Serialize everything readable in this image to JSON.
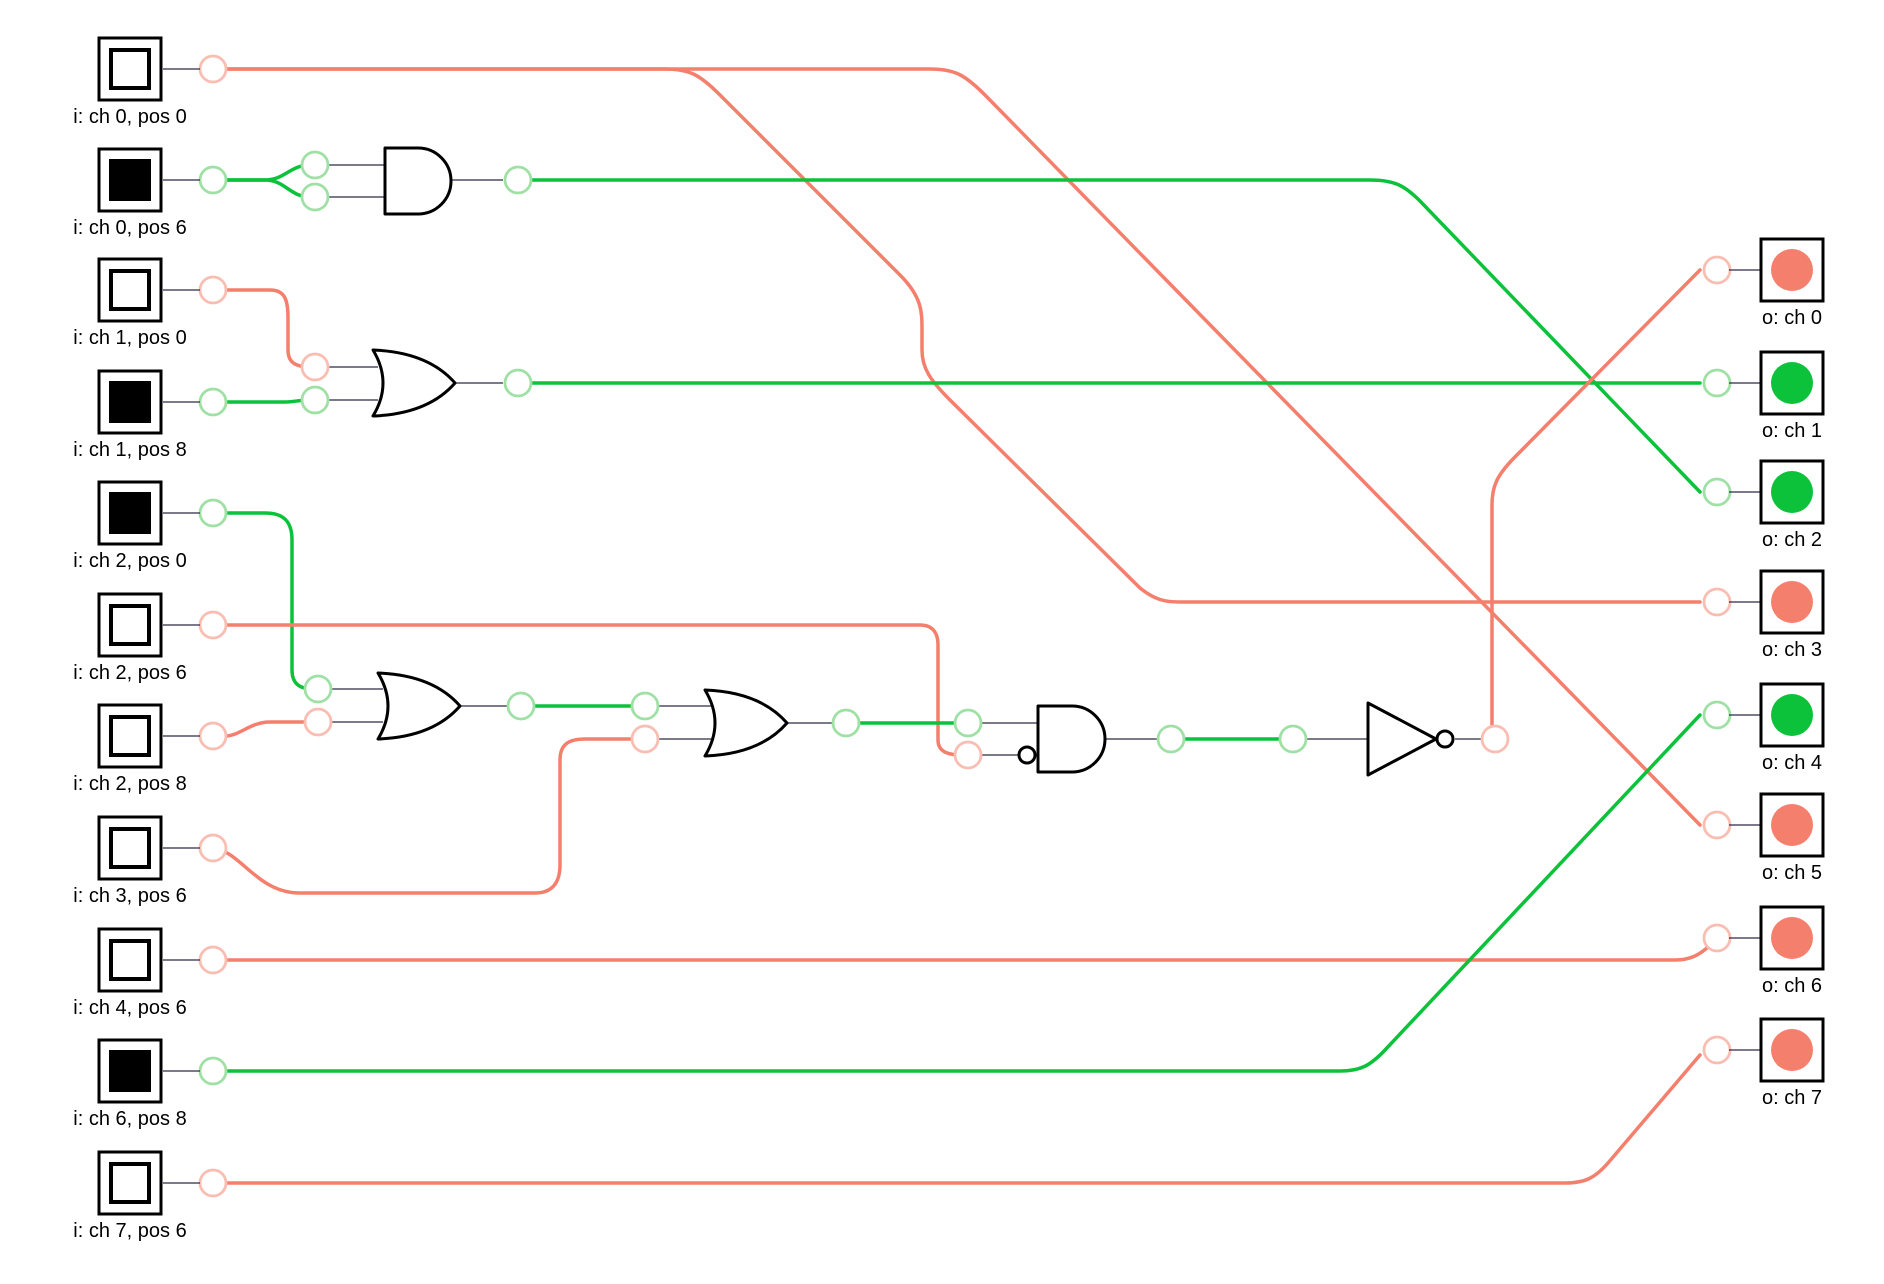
{
  "colors": {
    "on": "#0cc23a",
    "off": "#f47f6c",
    "port_on": "#9fe0a5",
    "port_off": "#f9bdb2",
    "outline": "#000000"
  },
  "inputs": [
    {
      "label": "i: ch 0, pos 0",
      "state": "off"
    },
    {
      "label": "i: ch 0, pos 6",
      "state": "on"
    },
    {
      "label": "i: ch 1, pos 0",
      "state": "off"
    },
    {
      "label": "i: ch 1, pos 8",
      "state": "on"
    },
    {
      "label": "i: ch 2, pos 0",
      "state": "on"
    },
    {
      "label": "i: ch 2, pos 6",
      "state": "off"
    },
    {
      "label": "i: ch 2, pos 8",
      "state": "off"
    },
    {
      "label": "i: ch 3, pos 6",
      "state": "off"
    },
    {
      "label": "i: ch 4, pos 6",
      "state": "off"
    },
    {
      "label": "i: ch 6, pos 8",
      "state": "on"
    },
    {
      "label": "i: ch 7, pos 6",
      "state": "off"
    }
  ],
  "outputs": [
    {
      "label": "o: ch 0",
      "state": "off"
    },
    {
      "label": "o: ch 1",
      "state": "on"
    },
    {
      "label": "o: ch 2",
      "state": "on"
    },
    {
      "label": "o: ch 3",
      "state": "off"
    },
    {
      "label": "o: ch 4",
      "state": "on"
    },
    {
      "label": "o: ch 5",
      "state": "off"
    },
    {
      "label": "o: ch 6",
      "state": "off"
    },
    {
      "label": "o: ch 7",
      "state": "off"
    }
  ],
  "gates": [
    {
      "id": "and-1",
      "type": "and",
      "inputs": [
        "on",
        "on"
      ],
      "output": "on"
    },
    {
      "id": "or-1",
      "type": "or",
      "inputs": [
        "off",
        "on"
      ],
      "output": "on"
    },
    {
      "id": "or-2",
      "type": "or",
      "inputs": [
        "on",
        "off"
      ],
      "output": "on"
    },
    {
      "id": "or-3",
      "type": "or",
      "inputs": [
        "on",
        "off"
      ],
      "output": "on"
    },
    {
      "id": "and-2",
      "type": "and",
      "negated_inputs": [
        2
      ],
      "inputs": [
        "on",
        "off"
      ],
      "output": "on"
    },
    {
      "id": "not-1",
      "type": "not",
      "inputs": [
        "on"
      ],
      "output": "off"
    }
  ],
  "connections": [
    {
      "from": "i: ch 0, pos 0",
      "to": "o: ch 3",
      "state": "off"
    },
    {
      "from": "i: ch 0, pos 0",
      "to": "o: ch 5",
      "state": "off"
    },
    {
      "from": "i: ch 0, pos 6",
      "to": "and-1",
      "state": "on"
    },
    {
      "from": "and-1",
      "to": "o: ch 2",
      "state": "on"
    },
    {
      "from": "i: ch 1, pos 0",
      "to": "or-1",
      "state": "off"
    },
    {
      "from": "i: ch 1, pos 8",
      "to": "or-1",
      "state": "on"
    },
    {
      "from": "or-1",
      "to": "o: ch 1",
      "state": "on"
    },
    {
      "from": "i: ch 2, pos 0",
      "to": "or-2",
      "state": "on"
    },
    {
      "from": "i: ch 2, pos 8",
      "to": "or-2",
      "state": "off"
    },
    {
      "from": "or-2",
      "to": "or-3",
      "state": "on"
    },
    {
      "from": "i: ch 3, pos 6",
      "to": "or-3",
      "state": "off"
    },
    {
      "from": "or-3",
      "to": "and-2",
      "state": "on"
    },
    {
      "from": "i: ch 2, pos 6",
      "to": "and-2",
      "state": "off"
    },
    {
      "from": "and-2",
      "to": "not-1",
      "state": "on"
    },
    {
      "from": "not-1",
      "to": "o: ch 0",
      "state": "off"
    },
    {
      "from": "i: ch 4, pos 6",
      "to": "o: ch 6",
      "state": "off"
    },
    {
      "from": "i: ch 6, pos 8",
      "to": "o: ch 4",
      "state": "on"
    },
    {
      "from": "i: ch 7, pos 6",
      "to": "o: ch 7",
      "state": "off"
    }
  ]
}
